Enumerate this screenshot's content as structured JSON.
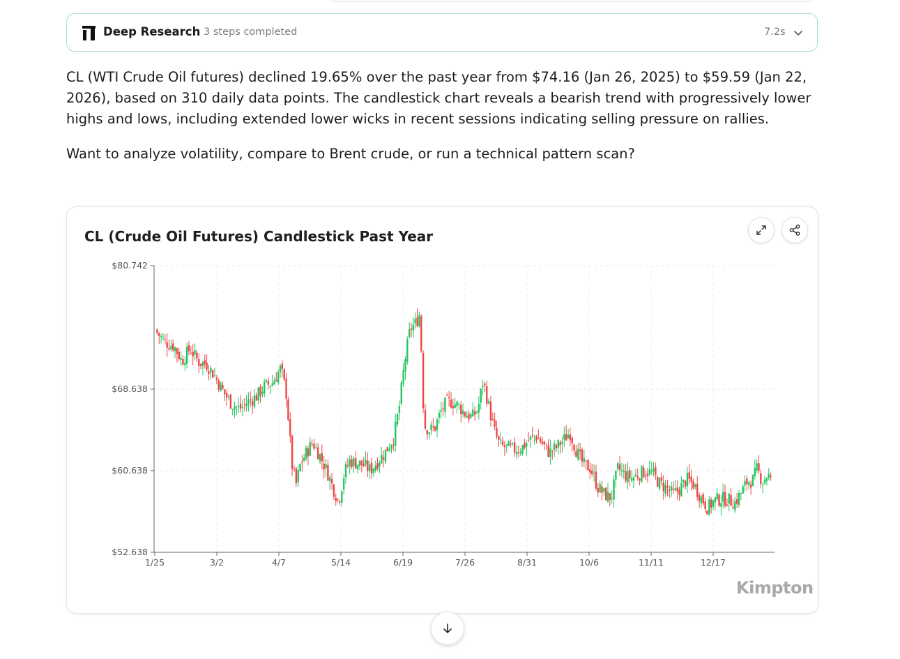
{
  "research": {
    "title": "Deep Research",
    "steps": "3 steps completed",
    "time": "7.2s"
  },
  "answer": {
    "paragraph1": "CL (WTI Crude Oil futures) declined 19.65% over the past year from $74.16 (Jan 26, 2025) to $59.59 (Jan 22, 2026), based on 310 daily data points. The candlestick chart reveals a bearish trend with progressively lower highs and lows, including extended lower wicks in recent sessions indicating selling pressure on rallies.",
    "paragraph2": "Want to analyze volatility, compare to Brent crude, or run a technical pattern scan?"
  },
  "card": {
    "title": "CL (Crude Oil Futures) Candlestick Past Year",
    "watermark": "Kimpton"
  },
  "colors": {
    "up": "#22c55e",
    "down": "#ef4444",
    "accent_border": "#a9dcd3"
  },
  "icons": {
    "research_logo": "deep-research-logo",
    "chevron": "chevron-down-icon",
    "expand": "expand-icon",
    "share": "share-icon",
    "scroll": "arrow-down-icon"
  },
  "chart_data": {
    "type": "candlestick",
    "title": "CL (Crude Oil Futures) Candlestick Past Year",
    "y_ticks": [
      "$80.742",
      "$68.638",
      "$60.638",
      "$52.638"
    ],
    "y_tick_values": [
      80.742,
      68.638,
      60.638,
      52.638
    ],
    "ylim": [
      52.638,
      80.742
    ],
    "x_ticks": [
      "1/25",
      "3/2",
      "4/7",
      "5/14",
      "6/19",
      "7/26",
      "8/31",
      "10/6",
      "11/11",
      "12/17"
    ],
    "grid": true,
    "series": [
      {
        "points": [
          [
            0,
            74.16
          ],
          [
            6,
            73.2
          ],
          [
            12,
            72.9
          ],
          [
            18,
            71.4
          ],
          [
            24,
            72.6
          ],
          [
            30,
            71.3
          ],
          [
            36,
            71.1
          ],
          [
            42,
            69.9
          ],
          [
            48,
            68.4
          ],
          [
            54,
            67.2
          ],
          [
            60,
            66.7
          ],
          [
            66,
            67.4
          ],
          [
            72,
            67.9
          ],
          [
            78,
            68.9
          ],
          [
            84,
            69.3
          ],
          [
            90,
            70.7
          ],
          [
            94,
            68.1
          ],
          [
            98,
            61.2
          ],
          [
            101,
            59.3
          ],
          [
            104,
            61.2
          ],
          [
            108,
            62.3
          ],
          [
            113,
            63.4
          ],
          [
            118,
            62.2
          ],
          [
            124,
            60.4
          ],
          [
            128,
            58.9
          ],
          [
            132,
            57.6
          ],
          [
            136,
            60.4
          ],
          [
            140,
            61.6
          ],
          [
            145,
            61.4
          ],
          [
            150,
            61.2
          ],
          [
            155,
            60.7
          ],
          [
            160,
            61.5
          ],
          [
            166,
            62.5
          ],
          [
            172,
            63.9
          ],
          [
            176,
            66.9
          ],
          [
            180,
            71.4
          ],
          [
            184,
            74.6
          ],
          [
            188,
            75.1
          ],
          [
            191,
            76.1
          ],
          [
            194,
            65.1
          ],
          [
            198,
            64.6
          ],
          [
            202,
            64.9
          ],
          [
            206,
            66.4
          ],
          [
            210,
            67.3
          ],
          [
            214,
            67.4
          ],
          [
            219,
            67.0
          ],
          [
            224,
            66.2
          ],
          [
            229,
            65.9
          ],
          [
            233,
            66.6
          ],
          [
            237,
            69.5
          ],
          [
            241,
            67.0
          ],
          [
            245,
            64.6
          ],
          [
            249,
            63.1
          ],
          [
            254,
            62.9
          ],
          [
            259,
            62.7
          ],
          [
            265,
            62.9
          ],
          [
            270,
            63.6
          ],
          [
            275,
            64.1
          ],
          [
            280,
            63.3
          ],
          [
            285,
            62.4
          ],
          [
            290,
            62.9
          ],
          [
            295,
            63.6
          ],
          [
            300,
            64.4
          ],
          [
            305,
            62.5
          ],
          [
            310,
            61.2
          ],
          [
            315,
            60.9
          ],
          [
            320,
            59.1
          ],
          [
            325,
            58.3
          ],
          [
            330,
            58.0
          ],
          [
            335,
            60.9
          ],
          [
            340,
            60.2
          ],
          [
            345,
            59.9
          ],
          [
            350,
            60.3
          ],
          [
            355,
            60.6
          ],
          [
            360,
            60.4
          ],
          [
            365,
            59.4
          ],
          [
            370,
            59.0
          ],
          [
            375,
            58.3
          ],
          [
            380,
            58.9
          ],
          [
            385,
            59.8
          ],
          [
            390,
            59.3
          ],
          [
            395,
            58.1
          ],
          [
            400,
            57.0
          ],
          [
            405,
            57.7
          ],
          [
            410,
            57.9
          ],
          [
            415,
            57.8
          ],
          [
            420,
            57.5
          ],
          [
            425,
            58.6
          ],
          [
            429,
            59.6
          ],
          [
            433,
            59.7
          ],
          [
            436,
            60.8
          ],
          [
            440,
            59.6
          ],
          [
            444,
            60.3
          ],
          [
            446,
            59.6
          ]
        ]
      }
    ]
  }
}
